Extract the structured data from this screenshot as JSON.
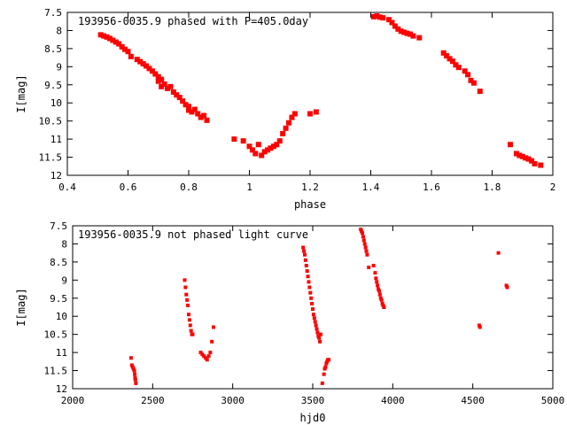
{
  "colors": {
    "points": "#ff0000",
    "axes": "#000000",
    "background": "#ffffff"
  },
  "chart_data": [
    {
      "type": "scatter",
      "title": "193956-0035.9 phased with P=405.0day",
      "xlabel": "phase",
      "ylabel": "I[mag]",
      "xlim": [
        0.4,
        2.0
      ],
      "ylim": [
        7.5,
        12.0
      ],
      "y_inverted": true,
      "grid": false,
      "marker": "filled-square",
      "xticks": [
        "0.4",
        "0.6",
        "0.8",
        "1",
        "1.2",
        "1.4",
        "1.6",
        "1.8",
        "2"
      ],
      "yticks": [
        "7.5",
        "8",
        "8.5",
        "9",
        "9.5",
        "10",
        "10.5",
        "11",
        "11.5",
        "12"
      ],
      "series": [
        {
          "x": [
            0.51,
            0.52,
            0.53,
            0.54,
            0.55,
            0.56,
            0.57,
            0.58,
            0.59,
            0.6,
            0.61,
            0.63,
            0.64,
            0.65,
            0.66,
            0.67,
            0.68,
            0.69,
            0.7,
            0.7,
            0.71,
            0.71,
            0.72,
            0.73,
            0.74,
            0.75,
            0.76,
            0.77,
            0.78,
            0.79,
            0.8,
            0.8,
            0.81,
            0.82,
            0.83,
            0.84,
            0.85,
            0.86,
            0.95,
            0.98,
            1.0,
            1.01,
            1.02,
            1.03,
            1.04,
            1.05,
            1.06,
            1.07,
            1.08,
            1.09,
            1.1,
            1.11,
            1.12,
            1.13,
            1.14,
            1.15,
            1.2,
            1.22,
            1.41,
            1.42,
            1.43,
            1.44,
            1.46,
            1.47,
            1.48,
            1.49,
            1.5,
            1.51,
            1.52,
            1.53,
            1.54,
            1.56,
            1.64,
            1.65,
            1.66,
            1.67,
            1.68,
            1.69,
            1.71,
            1.72,
            1.73,
            1.74,
            1.76,
            1.86,
            1.88,
            1.89,
            1.9,
            1.91,
            1.92,
            1.93,
            1.94,
            1.96
          ],
          "y": [
            8.12,
            8.15,
            8.18,
            8.22,
            8.27,
            8.32,
            8.37,
            8.45,
            8.52,
            8.58,
            8.72,
            8.8,
            8.86,
            8.92,
            8.98,
            9.05,
            9.12,
            9.2,
            9.28,
            9.4,
            9.35,
            9.55,
            9.48,
            9.6,
            9.55,
            9.7,
            9.78,
            9.85,
            9.95,
            10.05,
            10.1,
            10.2,
            10.25,
            10.18,
            10.3,
            10.4,
            10.35,
            10.48,
            11.0,
            11.05,
            11.2,
            11.3,
            11.4,
            11.15,
            11.45,
            11.35,
            11.3,
            11.25,
            11.2,
            11.15,
            11.05,
            10.85,
            10.7,
            10.55,
            10.4,
            10.3,
            10.3,
            10.25,
            7.62,
            7.6,
            7.63,
            7.65,
            7.7,
            7.78,
            7.88,
            7.96,
            8.02,
            8.05,
            8.08,
            8.1,
            8.15,
            8.2,
            8.62,
            8.7,
            8.78,
            8.85,
            8.95,
            9.02,
            9.12,
            9.22,
            9.38,
            9.45,
            9.68,
            11.15,
            11.4,
            11.45,
            11.48,
            11.52,
            11.55,
            11.6,
            11.68,
            11.72
          ]
        }
      ]
    },
    {
      "type": "scatter",
      "title": "193956-0035.9 not phased light curve",
      "xlabel": "hjd0",
      "ylabel": "I[mag]",
      "xlim": [
        2000,
        5000
      ],
      "ylim": [
        7.5,
        12.0
      ],
      "y_inverted": true,
      "grid": false,
      "marker": "small-square",
      "xticks": [
        "2000",
        "2500",
        "3000",
        "3500",
        "4000",
        "4500",
        "5000"
      ],
      "yticks": [
        "7.5",
        "8",
        "8.5",
        "9",
        "9.5",
        "10",
        "10.5",
        "11",
        "11.5",
        "12"
      ],
      "series": [
        {
          "x": [
            2365,
            2370,
            2375,
            2380,
            2385,
            2388,
            2390,
            2392,
            2395,
            2700,
            2705,
            2710,
            2715,
            2720,
            2725,
            2730,
            2735,
            2740,
            2745,
            2750,
            2800,
            2810,
            2820,
            2830,
            2840,
            2850,
            2860,
            2870,
            2880,
            3440,
            3445,
            3450,
            3455,
            3460,
            3465,
            3470,
            3475,
            3480,
            3485,
            3490,
            3495,
            3500,
            3505,
            3510,
            3515,
            3520,
            3525,
            3530,
            3535,
            3540,
            3545,
            3550,
            3560,
            3570,
            3575,
            3580,
            3585,
            3590,
            3595,
            3600,
            3800,
            3805,
            3810,
            3815,
            3820,
            3825,
            3830,
            3835,
            3840,
            3850,
            3880,
            3890,
            3895,
            3900,
            3905,
            3910,
            3915,
            3920,
            3925,
            3930,
            3935,
            3940,
            3945,
            4540,
            4545,
            4660,
            4710,
            4715
          ],
          "y": [
            11.15,
            11.35,
            11.4,
            11.45,
            11.5,
            11.6,
            11.7,
            11.75,
            11.85,
            9.0,
            9.2,
            9.4,
            9.55,
            9.7,
            9.95,
            10.1,
            10.25,
            10.4,
            10.5,
            10.5,
            11.0,
            11.05,
            11.1,
            11.15,
            11.2,
            11.1,
            11.0,
            10.7,
            10.3,
            8.1,
            8.2,
            8.3,
            8.45,
            8.6,
            8.75,
            8.9,
            9.05,
            9.2,
            9.35,
            9.5,
            9.65,
            9.8,
            9.95,
            10.05,
            10.15,
            10.25,
            10.35,
            10.45,
            10.55,
            10.6,
            10.7,
            10.5,
            11.85,
            11.6,
            11.45,
            11.4,
            11.3,
            11.25,
            11.2,
            11.2,
            7.6,
            7.65,
            7.7,
            7.8,
            7.9,
            8.0,
            8.1,
            8.2,
            8.3,
            8.65,
            8.6,
            8.8,
            8.95,
            9.05,
            9.15,
            9.25,
            9.3,
            9.4,
            9.5,
            9.55,
            9.65,
            9.7,
            9.75,
            10.25,
            10.3,
            8.25,
            9.15,
            9.2
          ]
        }
      ]
    }
  ]
}
